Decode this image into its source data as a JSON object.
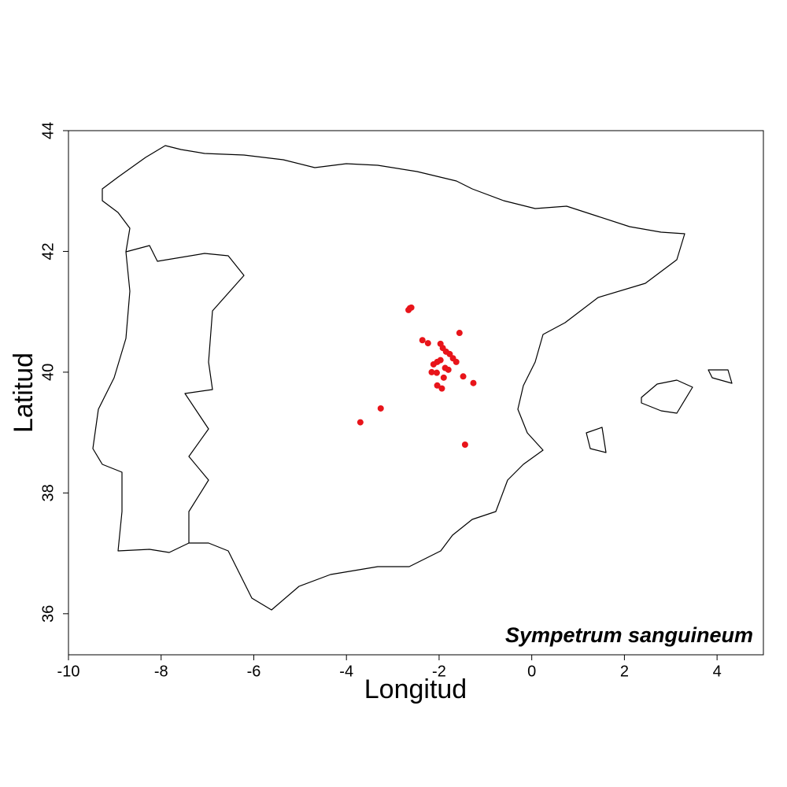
{
  "chart_data": {
    "type": "scatter",
    "xlabel": "Longitud",
    "ylabel": "Latitud",
    "annotation": "Sympetrum sanguineum",
    "xlim": [
      -10,
      5
    ],
    "ylim": [
      35.32,
      44
    ],
    "xticks": [
      -10,
      -8,
      -6,
      -4,
      -2,
      0,
      2,
      4
    ],
    "yticks": [
      36,
      38,
      40,
      42,
      44
    ],
    "series": [
      {
        "color": "#e8141a",
        "x": [
          -2.63,
          -2.6,
          -2.66,
          -2.36,
          -2.24,
          -1.97,
          -1.92,
          -1.56,
          -1.85,
          -1.77,
          -1.7,
          -1.63,
          -2.04,
          -2.12,
          -1.97,
          -1.87,
          -2.16,
          -2.05,
          -1.48,
          -1.26,
          -2.04,
          -1.94,
          -3.26,
          -3.7,
          -1.44,
          -1.8,
          -1.9
        ],
        "y": [
          41.06,
          41.07,
          41.03,
          40.53,
          40.48,
          40.47,
          40.4,
          40.65,
          40.34,
          40.3,
          40.23,
          40.17,
          40.17,
          40.13,
          40.2,
          40.07,
          40.0,
          39.99,
          39.93,
          39.82,
          39.78,
          39.73,
          39.4,
          39.17,
          38.8,
          40.04,
          39.91
        ]
      }
    ]
  }
}
